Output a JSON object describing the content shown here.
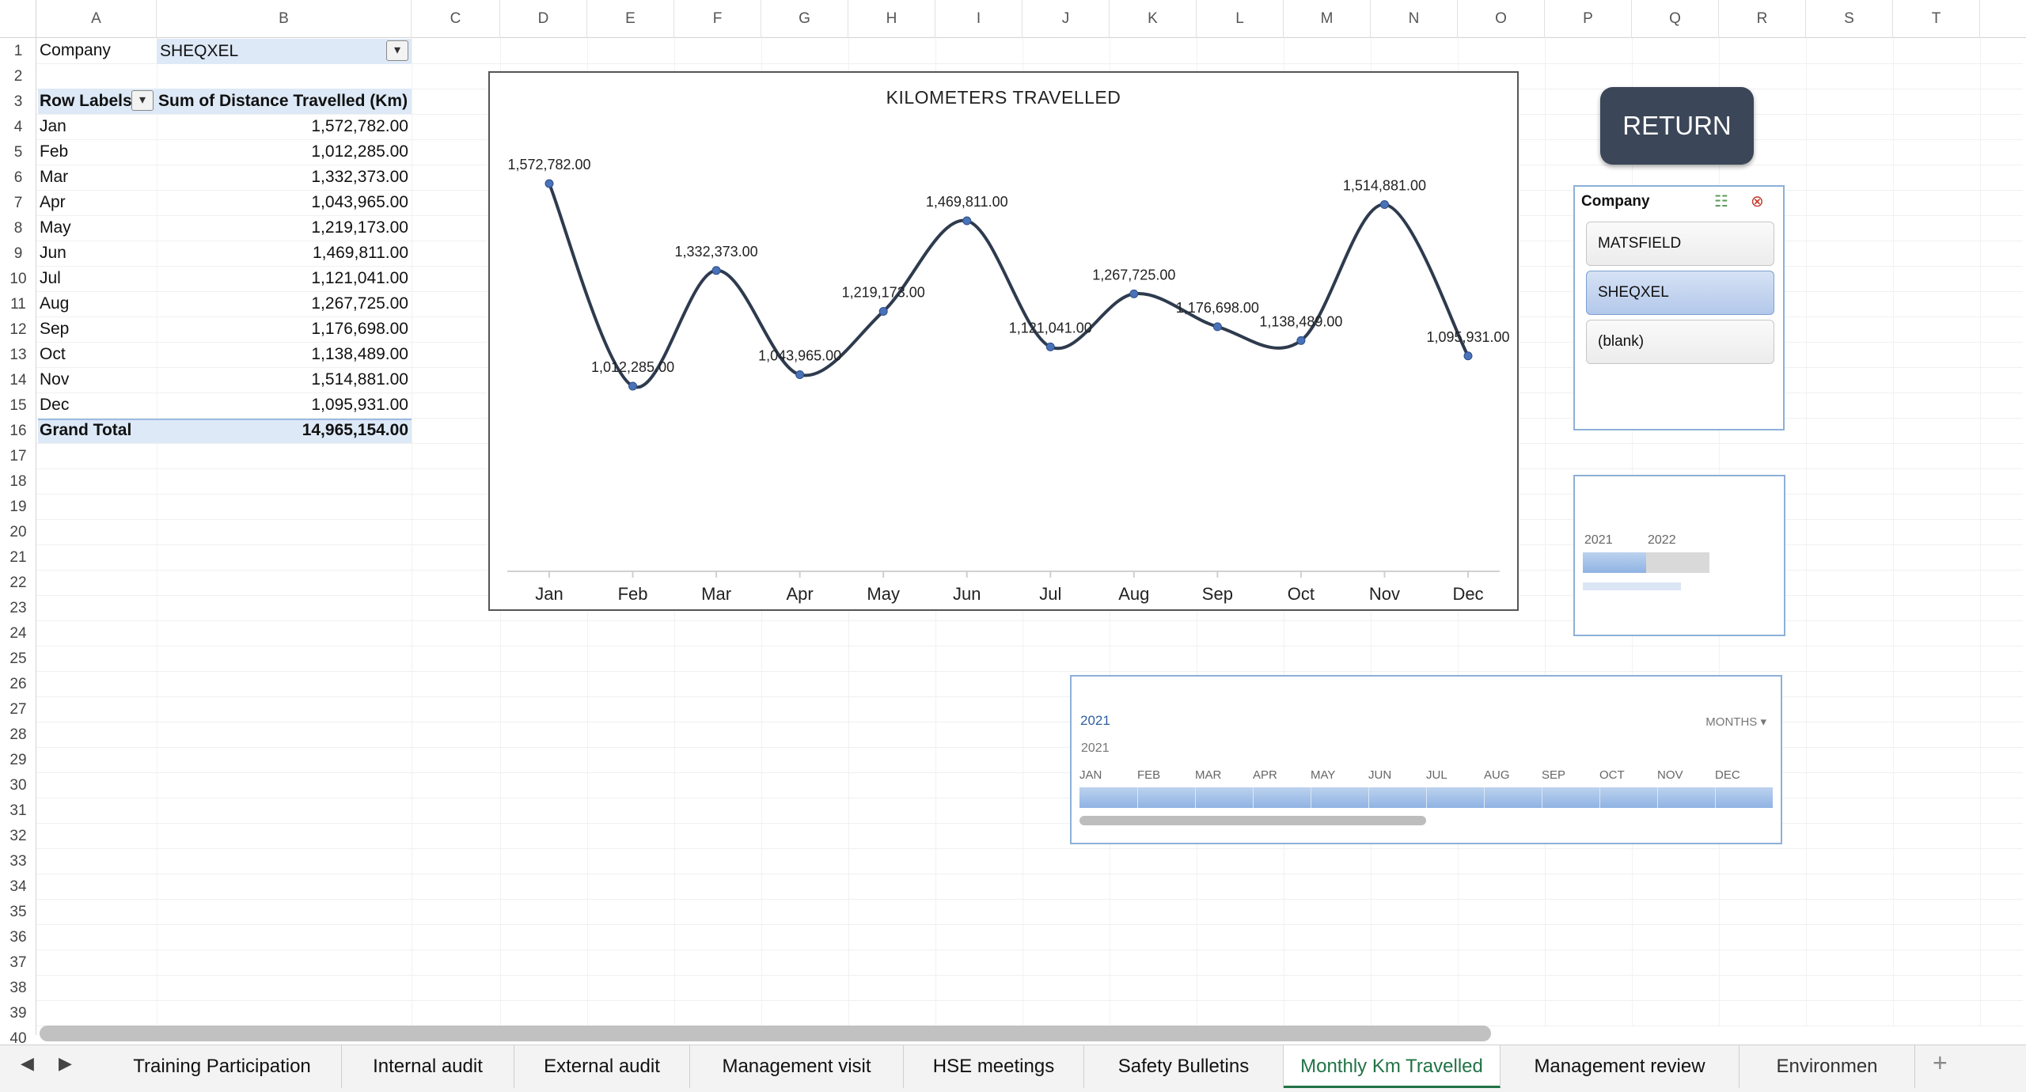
{
  "columns": [
    "A",
    "B",
    "C",
    "D",
    "E",
    "F",
    "G",
    "H",
    "I",
    "J",
    "K",
    "L",
    "M",
    "N",
    "O",
    "P",
    "Q",
    "R",
    "S",
    "T"
  ],
  "rows": 40,
  "filter_row": {
    "label": "Company",
    "value": "SHEQXEL"
  },
  "pivot": {
    "header_labels": "Row Labels",
    "header_values": "Sum of Distance Travelled (Km)",
    "rows": [
      {
        "label": "Jan",
        "value": "1,572,782.00"
      },
      {
        "label": "Feb",
        "value": "1,012,285.00"
      },
      {
        "label": "Mar",
        "value": "1,332,373.00"
      },
      {
        "label": "Apr",
        "value": "1,043,965.00"
      },
      {
        "label": "May",
        "value": "1,219,173.00"
      },
      {
        "label": "Jun",
        "value": "1,469,811.00"
      },
      {
        "label": "Jul",
        "value": "1,121,041.00"
      },
      {
        "label": "Aug",
        "value": "1,267,725.00"
      },
      {
        "label": "Sep",
        "value": "1,176,698.00"
      },
      {
        "label": "Oct",
        "value": "1,138,489.00"
      },
      {
        "label": "Nov",
        "value": "1,514,881.00"
      },
      {
        "label": "Dec",
        "value": "1,095,931.00"
      }
    ],
    "total_label": "Grand Total",
    "total_value": "14,965,154.00"
  },
  "chart_data": {
    "type": "line",
    "title": "KILOMETERS TRAVELLED",
    "categories": [
      "Jan",
      "Feb",
      "Mar",
      "Apr",
      "May",
      "Jun",
      "Jul",
      "Aug",
      "Sep",
      "Oct",
      "Nov",
      "Dec"
    ],
    "values": [
      1572782,
      1012285,
      1332373,
      1043965,
      1219173,
      1469811,
      1121041,
      1267725,
      1176698,
      1138489,
      1514881,
      1095931
    ],
    "data_labels": [
      "1,572,782.00",
      "1,012,285.00",
      "1,332,373.00",
      "1,043,965.00",
      "1,219,173.00",
      "1,469,811.00",
      "1,121,041.00",
      "1,267,725.00",
      "1,176,698.00",
      "1,138,489.00",
      "1,514,881.00",
      "1,095,931.00"
    ],
    "xlabel": "",
    "ylabel": "",
    "smooth": true,
    "line_color": "#2e3b4e",
    "marker_color": "#4a72b8",
    "grid": false
  },
  "return_button": "RETURN",
  "slicer": {
    "title": "Company",
    "items": [
      {
        "label": "MATSFIELD",
        "selected": false
      },
      {
        "label": "SHEQXEL",
        "selected": true
      },
      {
        "label": "(blank)",
        "selected": false
      }
    ],
    "multi_select_icon": "☷",
    "clear_filter_icon": "⊗"
  },
  "year_timeline": {
    "years": [
      "2021",
      "2022"
    ]
  },
  "month_timeline": {
    "selected_year": "2021",
    "level": "MONTHS ▾",
    "year_row": "2021",
    "months": [
      "JAN",
      "FEB",
      "MAR",
      "APR",
      "MAY",
      "JUN",
      "JUL",
      "AUG",
      "SEP",
      "OCT",
      "NOV",
      "DEC"
    ]
  },
  "tabs": [
    {
      "label": "Training Participation",
      "active": false
    },
    {
      "label": "Internal audit",
      "active": false
    },
    {
      "label": "External audit",
      "active": false
    },
    {
      "label": "Management visit",
      "active": false
    },
    {
      "label": "HSE meetings",
      "active": false
    },
    {
      "label": "Safety Bulletins",
      "active": false
    },
    {
      "label": "Monthly Km Travelled",
      "active": true
    },
    {
      "label": "Management review",
      "active": false
    },
    {
      "label": "Environmen",
      "active": false
    }
  ],
  "add_sheet": "+"
}
